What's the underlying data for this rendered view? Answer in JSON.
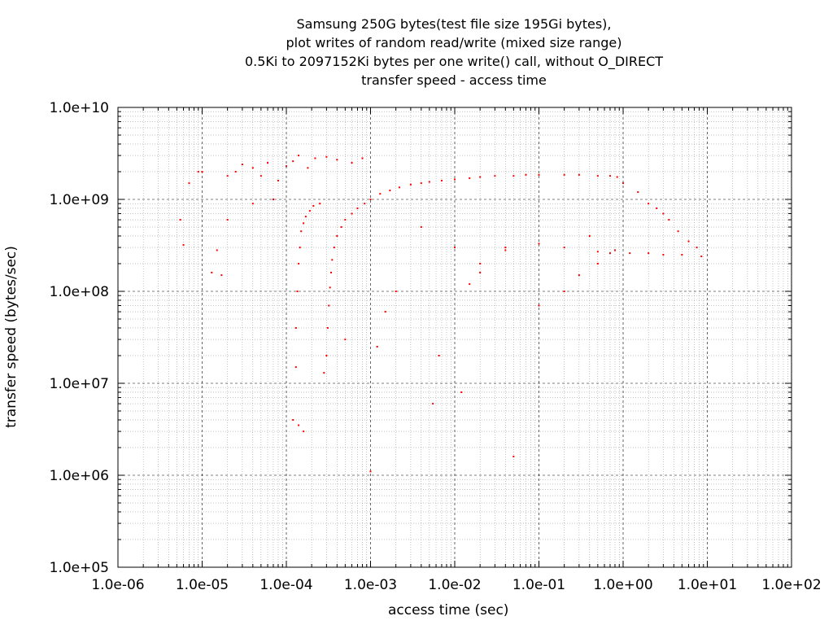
{
  "chart_data": {
    "type": "scatter",
    "title": [
      "Samsung 250G bytes(test file size 195Gi bytes),",
      "plot writes of random read/write (mixed size range)",
      "0.5Ki to 2097152Ki bytes per one write() call, without O_DIRECT",
      "transfer speed - access time"
    ],
    "xlabel": "access time (sec)",
    "ylabel": "transfer speed (bytes/sec)",
    "xscale": "log",
    "yscale": "log",
    "xlim": [
      1e-06,
      100.0
    ],
    "ylim": [
      100000.0,
      10000000000.0
    ],
    "xticks": [
      "1.0e-06",
      "1.0e-05",
      "1.0e-04",
      "1.0e-03",
      "1.0e-02",
      "1.0e-01",
      "1.0e+00",
      "1.0e+01",
      "1.0e+02"
    ],
    "yticks": [
      "1.0e+05",
      "1.0e+06",
      "1.0e+07",
      "1.0e+08",
      "1.0e+09",
      "1.0e+10"
    ],
    "grid": true,
    "marker_color": "#ff0000",
    "series": [
      {
        "points": [
          [
            5.5e-06,
            600000000.0
          ],
          [
            6e-06,
            320000000.0
          ],
          [
            7e-06,
            1500000000.0
          ],
          [
            9e-06,
            2000000000.0
          ],
          [
            1e-05,
            2000000000.0
          ],
          [
            1.3e-05,
            160000000.0
          ],
          [
            1.5e-05,
            280000000.0
          ],
          [
            1.7e-05,
            150000000.0
          ],
          [
            2e-05,
            1800000000.0
          ],
          [
            2.5e-05,
            2000000000.0
          ],
          [
            3e-05,
            2400000000.0
          ],
          [
            4e-05,
            2200000000.0
          ],
          [
            5e-05,
            1800000000.0
          ],
          [
            6e-05,
            2500000000.0
          ],
          [
            8e-05,
            1600000000.0
          ],
          [
            0.0001,
            2300000000.0
          ],
          [
            0.00012,
            2600000000.0
          ],
          [
            0.00014,
            3000000000.0
          ],
          [
            0.00018,
            2200000000.0
          ],
          [
            0.00022,
            2800000000.0
          ],
          [
            0.0003,
            2900000000.0
          ],
          [
            0.0004,
            2700000000.0
          ],
          [
            0.0006,
            2500000000.0
          ],
          [
            0.0008,
            2800000000.0
          ],
          [
            2e-05,
            600000000.0
          ],
          [
            4e-05,
            900000000.0
          ],
          [
            7e-05,
            1000000000.0
          ],
          [
            0.00012,
            4000000.0
          ],
          [
            0.00014,
            3500000.0
          ],
          [
            0.00016,
            3000000.0
          ],
          [
            0.00013,
            15000000.0
          ],
          [
            0.00013,
            40000000.0
          ],
          [
            0.000135,
            100000000.0
          ],
          [
            0.00014,
            200000000.0
          ],
          [
            0.000145,
            300000000.0
          ],
          [
            0.00015,
            450000000.0
          ],
          [
            0.00016,
            550000000.0
          ],
          [
            0.00017,
            650000000.0
          ],
          [
            0.00019,
            750000000.0
          ],
          [
            0.00021,
            850000000.0
          ],
          [
            0.00025,
            900000000.0
          ],
          [
            0.00028,
            13000000.0
          ],
          [
            0.0003,
            20000000.0
          ],
          [
            0.00031,
            40000000.0
          ],
          [
            0.00032,
            70000000.0
          ],
          [
            0.00033,
            110000000.0
          ],
          [
            0.00034,
            160000000.0
          ],
          [
            0.00035,
            220000000.0
          ],
          [
            0.00037,
            300000000.0
          ],
          [
            0.0004,
            400000000.0
          ],
          [
            0.00045,
            500000000.0
          ],
          [
            0.0005,
            600000000.0
          ],
          [
            0.0006,
            700000000.0
          ],
          [
            0.0007,
            800000000.0
          ],
          [
            0.00085,
            900000000.0
          ],
          [
            0.001,
            1000000000.0
          ],
          [
            0.0013,
            1150000000.0
          ],
          [
            0.0017,
            1250000000.0
          ],
          [
            0.0022,
            1350000000.0
          ],
          [
            0.003,
            1450000000.0
          ],
          [
            0.004,
            1500000000.0
          ],
          [
            0.005,
            1550000000.0
          ],
          [
            0.007,
            1600000000.0
          ],
          [
            0.01,
            1650000000.0
          ],
          [
            0.015,
            1700000000.0
          ],
          [
            0.02,
            1750000000.0
          ],
          [
            0.03,
            1800000000.0
          ],
          [
            0.05,
            1800000000.0
          ],
          [
            0.07,
            1850000000.0
          ],
          [
            0.1,
            1850000000.0
          ],
          [
            0.2,
            1850000000.0
          ],
          [
            0.3,
            1850000000.0
          ],
          [
            0.5,
            1800000000.0
          ],
          [
            0.7,
            1800000000.0
          ],
          [
            0.85,
            1750000000.0
          ],
          [
            1.0,
            1500000000.0
          ],
          [
            1.5,
            1200000000.0
          ],
          [
            2.0,
            900000000.0
          ],
          [
            2.5,
            800000000.0
          ],
          [
            3.0,
            700000000.0
          ],
          [
            3.5,
            600000000.0
          ],
          [
            4.5,
            450000000.0
          ],
          [
            6.0,
            350000000.0
          ],
          [
            7.5,
            300000000.0
          ],
          [
            8.5,
            240000000.0
          ],
          [
            0.8,
            280000000.0
          ],
          [
            1.2,
            260000000.0
          ],
          [
            2.0,
            260000000.0
          ],
          [
            3.0,
            250000000.0
          ],
          [
            5.0,
            250000000.0
          ],
          [
            0.7,
            260000000.0
          ],
          [
            0.5,
            270000000.0
          ],
          [
            0.2,
            300000000.0
          ],
          [
            0.1,
            330000000.0
          ],
          [
            0.04,
            280000000.0
          ],
          [
            0.004,
            500000000.0
          ],
          [
            0.01,
            300000000.0
          ],
          [
            0.02,
            160000000.0
          ],
          [
            0.0012,
            25000000.0
          ],
          [
            0.0015,
            60000000.0
          ],
          [
            0.002,
            100000000.0
          ],
          [
            0.0005,
            30000000.0
          ],
          [
            0.0055,
            6000000.0
          ],
          [
            0.0065,
            20000000.0
          ],
          [
            0.012,
            8000000.0
          ],
          [
            0.05,
            1600000.0
          ],
          [
            0.001,
            1100000.0
          ],
          [
            0.1,
            70000000.0
          ],
          [
            0.3,
            150000000.0
          ],
          [
            0.2,
            100000000.0
          ],
          [
            0.5,
            200000000.0
          ],
          [
            0.4,
            400000000.0
          ],
          [
            0.015,
            120000000.0
          ],
          [
            0.02,
            200000000.0
          ],
          [
            0.04,
            300000000.0
          ]
        ]
      }
    ]
  }
}
